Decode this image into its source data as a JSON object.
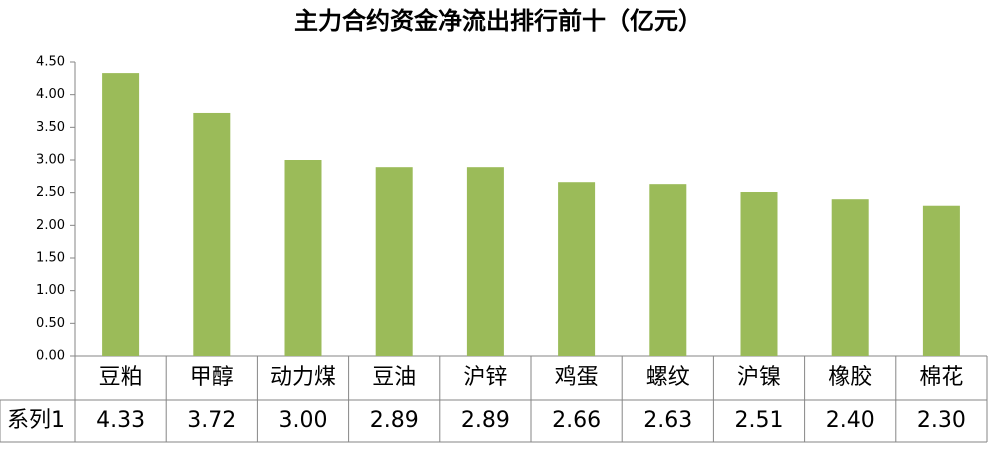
{
  "chart_data": {
    "type": "bar",
    "title": "主力合约资金净流出排行前十（亿元）",
    "categories": [
      "豆粕",
      "甲醇",
      "动力煤",
      "豆油",
      "沪锌",
      "鸡蛋",
      "螺纹",
      "沪镍",
      "橡胶",
      "棉花"
    ],
    "series": [
      {
        "name": "系列1",
        "color": "#9bbb59",
        "values": [
          4.33,
          3.72,
          3.0,
          2.89,
          2.89,
          2.66,
          2.63,
          2.51,
          2.4,
          2.3
        ],
        "value_labels": [
          "4.33",
          "3.72",
          "3.00",
          "2.89",
          "2.89",
          "2.66",
          "2.63",
          "2.51",
          "2.40",
          "2.30"
        ]
      }
    ],
    "ylim": [
      0,
      4.5
    ],
    "yticks": [
      {
        "value": 0,
        "label": "0.00"
      },
      {
        "value": 0.5,
        "label": "0.50"
      },
      {
        "value": 1,
        "label": "1.00"
      },
      {
        "value": 1.5,
        "label": "1.50"
      },
      {
        "value": 2,
        "label": "2.00"
      },
      {
        "value": 2.5,
        "label": "2.50"
      },
      {
        "value": 3,
        "label": "3.00"
      },
      {
        "value": 3.5,
        "label": "3.50"
      },
      {
        "value": 4,
        "label": "4.00"
      },
      {
        "value": 4.5,
        "label": "4.50"
      }
    ],
    "grid": false
  }
}
